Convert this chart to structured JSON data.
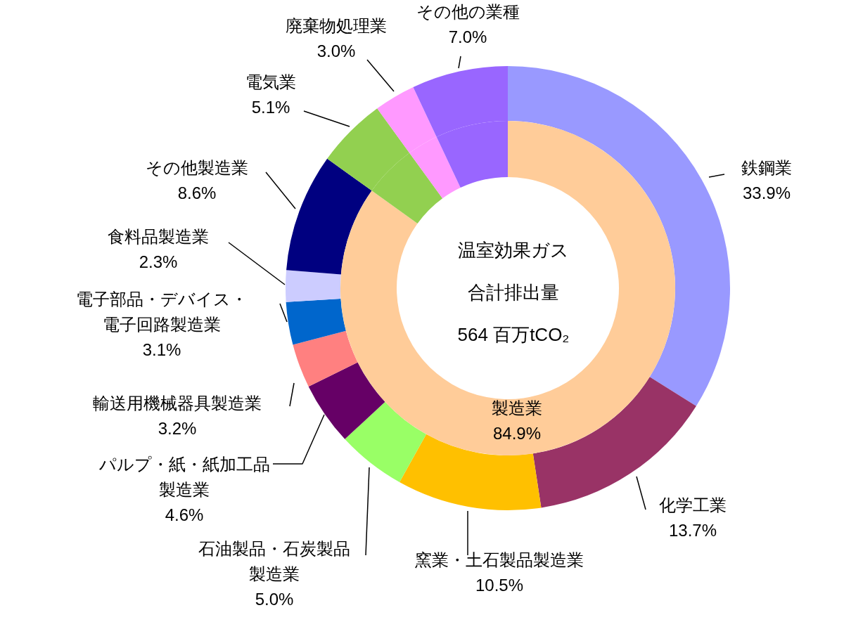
{
  "chart_data": [
    {
      "type": "donut",
      "categories": [
        "鉄鋼業",
        "化学工業",
        "窯業・土石製品製造業",
        "石油製品・石炭製品製造業",
        "パルプ・紙・紙加工品製造業",
        "輸送用機械器具製造業",
        "電子部品・デバイス・電子回路製造業",
        "食料品製造業",
        "その他製造業",
        "電気業",
        "廃棄物処理業",
        "その他の業種"
      ],
      "values": [
        33.9,
        13.7,
        10.5,
        5.0,
        4.6,
        3.2,
        3.1,
        2.3,
        8.6,
        5.1,
        3.0,
        7.0
      ],
      "colors": [
        "#9999ff",
        "#993366",
        "#ffc000",
        "#99ff66",
        "#660066",
        "#ff8080",
        "#0066cc",
        "#ccccff",
        "#000080",
        "#92d050",
        "#ff99ff",
        "#9966ff"
      ],
      "value_labels": [
        "33.9%",
        "13.7%",
        "10.5%",
        "5.0%",
        "4.6%",
        "3.2%",
        "3.1%",
        "2.3%",
        "8.6%",
        "5.1%",
        "3.0%",
        "7.0%"
      ]
    },
    {
      "type": "donut",
      "categories": [
        "製造業",
        null,
        null,
        null
      ],
      "values": [
        84.9,
        5.1,
        3.0,
        7.0
      ],
      "colors": [
        "#ffcc99",
        "#92d050",
        "#ff99ff",
        "#9966ff"
      ],
      "value_labels": [
        "84.9%",
        null,
        null,
        null
      ],
      "annotations": [
        "温室効果ガス",
        "合計排出量",
        "564 百万tCO₂"
      ]
    }
  ]
}
